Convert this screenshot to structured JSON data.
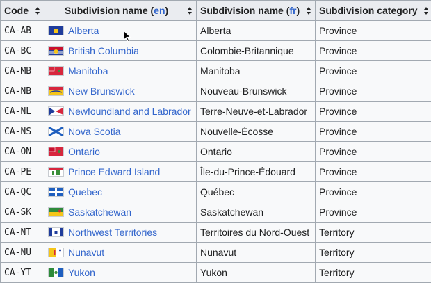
{
  "table": {
    "headers": {
      "code": "Code",
      "name_en_prefix": "Subdivision name (",
      "name_en_lang": "en",
      "name_fr_prefix": "Subdivision name (",
      "name_fr_lang": "fr",
      "suffix": ")",
      "category": "Subdivision category"
    },
    "rows": [
      {
        "code": "CA-AB",
        "name_en": "Alberta",
        "name_fr": "Alberta",
        "category": "Province",
        "flag": {
          "icon": "alberta-flag-icon",
          "colors": [
            "#1f3c9b",
            "#f5c518"
          ]
        }
      },
      {
        "code": "CA-BC",
        "name_en": "British Columbia",
        "name_fr": "Colombie-Britannique",
        "category": "Province",
        "flag": {
          "icon": "british-columbia-flag-icon",
          "colors": [
            "#c8102e",
            "#1f3c9b",
            "#f5c518"
          ]
        }
      },
      {
        "code": "CA-MB",
        "name_en": "Manitoba",
        "name_fr": "Manitoba",
        "category": "Province",
        "flag": {
          "icon": "manitoba-flag-icon",
          "colors": [
            "#d7263d",
            "#ffffff"
          ]
        }
      },
      {
        "code": "CA-NB",
        "name_en": "New Brunswick",
        "name_fr": "Nouveau-Brunswick",
        "category": "Province",
        "flag": {
          "icon": "new-brunswick-flag-icon",
          "colors": [
            "#f5c518",
            "#d7263d"
          ]
        }
      },
      {
        "code": "CA-NL",
        "name_en": "Newfoundland and Labrador",
        "name_fr": "Terre-Neuve-et-Labrador",
        "category": "Province",
        "flag": {
          "icon": "newfoundland-labrador-flag-icon",
          "colors": [
            "#ffffff",
            "#1f3c9b",
            "#d7263d"
          ]
        }
      },
      {
        "code": "CA-NS",
        "name_en": "Nova Scotia",
        "name_fr": "Nouvelle-Écosse",
        "category": "Province",
        "flag": {
          "icon": "nova-scotia-flag-icon",
          "colors": [
            "#ffffff",
            "#1f5fbf"
          ]
        }
      },
      {
        "code": "CA-ON",
        "name_en": "Ontario",
        "name_fr": "Ontario",
        "category": "Province",
        "flag": {
          "icon": "ontario-flag-icon",
          "colors": [
            "#d7263d",
            "#ffffff"
          ]
        }
      },
      {
        "code": "CA-PE",
        "name_en": "Prince Edward Island",
        "name_fr": "Île-du-Prince-Édouard",
        "category": "Province",
        "flag": {
          "icon": "prince-edward-island-flag-icon",
          "colors": [
            "#ffffff",
            "#d7263d",
            "#3a8f3a"
          ]
        }
      },
      {
        "code": "CA-QC",
        "name_en": "Quebec",
        "name_fr": "Québec",
        "category": "Province",
        "flag": {
          "icon": "quebec-flag-icon",
          "colors": [
            "#1f5fbf",
            "#ffffff"
          ]
        }
      },
      {
        "code": "CA-SK",
        "name_en": "Saskatchewan",
        "name_fr": "Saskatchewan",
        "category": "Province",
        "flag": {
          "icon": "saskatchewan-flag-icon",
          "colors": [
            "#2e8b3a",
            "#f5c518"
          ]
        }
      },
      {
        "code": "CA-NT",
        "name_en": "Northwest Territories",
        "name_fr": "Territoires du Nord-Ouest",
        "category": "Territory",
        "flag": {
          "icon": "northwest-territories-flag-icon",
          "colors": [
            "#1f3c9b",
            "#ffffff"
          ]
        }
      },
      {
        "code": "CA-NU",
        "name_en": "Nunavut",
        "name_fr": "Nunavut",
        "category": "Territory",
        "flag": {
          "icon": "nunavut-flag-icon",
          "colors": [
            "#f5c518",
            "#ffffff",
            "#d7263d"
          ]
        }
      },
      {
        "code": "CA-YT",
        "name_en": "Yukon",
        "name_fr": "Yukon",
        "category": "Territory",
        "flag": {
          "icon": "yukon-flag-icon",
          "colors": [
            "#2e8b3a",
            "#ffffff",
            "#1f5fbf"
          ]
        }
      }
    ]
  },
  "colors": {
    "link": "#3366cc",
    "header_bg": "#eaecf0",
    "cell_bg": "#f8f9fa",
    "border": "#a2a9b1"
  }
}
